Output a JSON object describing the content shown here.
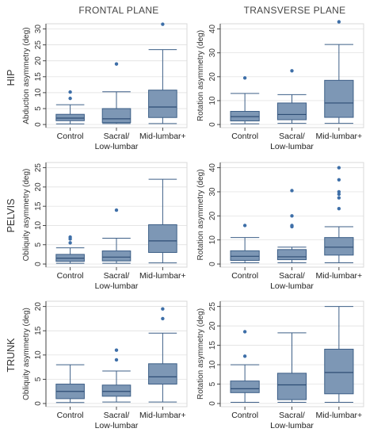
{
  "column_titles": [
    "FRONTAL PLANE",
    "TRANSVERSE PLANE"
  ],
  "row_titles": [
    "HIP",
    "PELVIS",
    "TRUNK"
  ],
  "chart_data": [
    {
      "type": "box",
      "row": 0,
      "col": 0,
      "ylabel": "Abduction asymmetry (deg)",
      "ylim": [
        0,
        30
      ],
      "yticks": [
        0,
        5,
        10,
        15,
        20,
        25,
        30
      ],
      "categories": [
        [
          "Control"
        ],
        [
          "Sacral/",
          "Low-lumbar"
        ],
        [
          "Mid-lumbar+"
        ]
      ],
      "boxes": [
        {
          "min": 0.2,
          "q1": 1.2,
          "median": 2.0,
          "q3": 3.2,
          "max": 6.2,
          "outliers": [
            8.2,
            10.2
          ]
        },
        {
          "min": 0.3,
          "q1": 0.6,
          "median": 1.8,
          "q3": 5.0,
          "max": 10.3,
          "outliers": [
            19.0
          ]
        },
        {
          "min": 0.3,
          "q1": 2.2,
          "median": 5.5,
          "q3": 10.8,
          "max": 23.5,
          "outliers": [
            31.5
          ]
        }
      ]
    },
    {
      "type": "box",
      "row": 0,
      "col": 1,
      "ylabel": "Rotation asymmetry (deg)",
      "ylim": [
        0,
        40
      ],
      "yticks": [
        0,
        10,
        20,
        30,
        40
      ],
      "categories": [
        [
          "Control"
        ],
        [
          "Sacral/",
          "Low-lumbar"
        ],
        [
          "Mid-lumbar+"
        ]
      ],
      "boxes": [
        {
          "min": 0.3,
          "q1": 1.5,
          "median": 3.3,
          "q3": 5.5,
          "max": 13.0,
          "outliers": [
            19.5
          ]
        },
        {
          "min": 0.5,
          "q1": 2.0,
          "median": 4.2,
          "q3": 9.0,
          "max": 12.5,
          "outliers": [
            22.5
          ]
        },
        {
          "min": 0.5,
          "q1": 3.0,
          "median": 9.0,
          "q3": 18.5,
          "max": 33.5,
          "outliers": [
            43.0
          ]
        }
      ]
    },
    {
      "type": "box",
      "row": 1,
      "col": 0,
      "ylabel": "Obliquity asymmetry (deg)",
      "ylim": [
        0,
        25
      ],
      "yticks": [
        0,
        5,
        10,
        15,
        20,
        25
      ],
      "categories": [
        [
          "Control"
        ],
        [
          "Sacral/",
          "Low-lumbar"
        ],
        [
          "Mid-lumbar+"
        ]
      ],
      "boxes": [
        {
          "min": 0.2,
          "q1": 0.7,
          "median": 1.5,
          "q3": 2.5,
          "max": 4.2,
          "outliers": [
            5.5,
            6.5,
            7.0
          ]
        },
        {
          "min": 0.2,
          "q1": 0.8,
          "median": 1.8,
          "q3": 3.4,
          "max": 6.7,
          "outliers": [
            14.0
          ]
        },
        {
          "min": 0.3,
          "q1": 3.0,
          "median": 6.0,
          "q3": 10.2,
          "max": 22.0,
          "outliers": []
        }
      ]
    },
    {
      "type": "box",
      "row": 1,
      "col": 1,
      "ylabel": "Rotation asymmetry (deg)",
      "ylim": [
        0,
        40
      ],
      "yticks": [
        0,
        10,
        20,
        30,
        40
      ],
      "categories": [
        [
          "Control"
        ],
        [
          "Sacral/",
          "Low-lumbar"
        ],
        [
          "Mid-lumbar+"
        ]
      ],
      "boxes": [
        {
          "min": 0.5,
          "q1": 1.5,
          "median": 3.2,
          "q3": 5.5,
          "max": 11.0,
          "outliers": [
            16.0
          ]
        },
        {
          "min": 0.5,
          "q1": 1.8,
          "median": 3.0,
          "q3": 6.0,
          "max": 7.0,
          "outliers": [
            15.5,
            16.0,
            20.0,
            30.5
          ]
        },
        {
          "min": 0.5,
          "q1": 3.7,
          "median": 7.0,
          "q3": 11.0,
          "max": 15.5,
          "outliers": [
            23.0,
            27.5,
            29.0,
            30.0,
            35.0,
            40.0
          ]
        }
      ]
    },
    {
      "type": "box",
      "row": 2,
      "col": 0,
      "ylabel": "Obliquity asymmetry (deg)",
      "ylim": [
        0,
        20
      ],
      "yticks": [
        0,
        5,
        10,
        15,
        20
      ],
      "categories": [
        [
          "Control"
        ],
        [
          "Sacral/",
          "Low-lumbar"
        ],
        [
          "Mid-lumbar+"
        ]
      ],
      "boxes": [
        {
          "min": 0.2,
          "q1": 1.0,
          "median": 2.5,
          "q3": 4.0,
          "max": 8.0,
          "outliers": []
        },
        {
          "min": 0.3,
          "q1": 1.5,
          "median": 2.5,
          "q3": 3.8,
          "max": 6.7,
          "outliers": [
            9.0,
            11.0
          ]
        },
        {
          "min": 0.3,
          "q1": 4.0,
          "median": 5.5,
          "q3": 8.2,
          "max": 14.5,
          "outliers": [
            17.5,
            19.5
          ]
        }
      ]
    },
    {
      "type": "box",
      "row": 2,
      "col": 1,
      "ylabel": "Rotation asymmetry (deg)",
      "ylim": [
        0,
        25
      ],
      "yticks": [
        0,
        5,
        10,
        15,
        20,
        25
      ],
      "categories": [
        [
          "Control"
        ],
        [
          "Sacral/",
          "Low-lumbar"
        ],
        [
          "Mid-lumbar+"
        ]
      ],
      "boxes": [
        {
          "min": 0.3,
          "q1": 2.8,
          "median": 3.8,
          "q3": 5.8,
          "max": 10.0,
          "outliers": [
            12.2,
            18.5
          ]
        },
        {
          "min": 0.3,
          "q1": 1.0,
          "median": 4.8,
          "q3": 7.8,
          "max": 18.2,
          "outliers": []
        },
        {
          "min": 0.3,
          "q1": 2.5,
          "median": 8.0,
          "q3": 14.0,
          "max": 25.0,
          "outliers": []
        }
      ]
    }
  ]
}
